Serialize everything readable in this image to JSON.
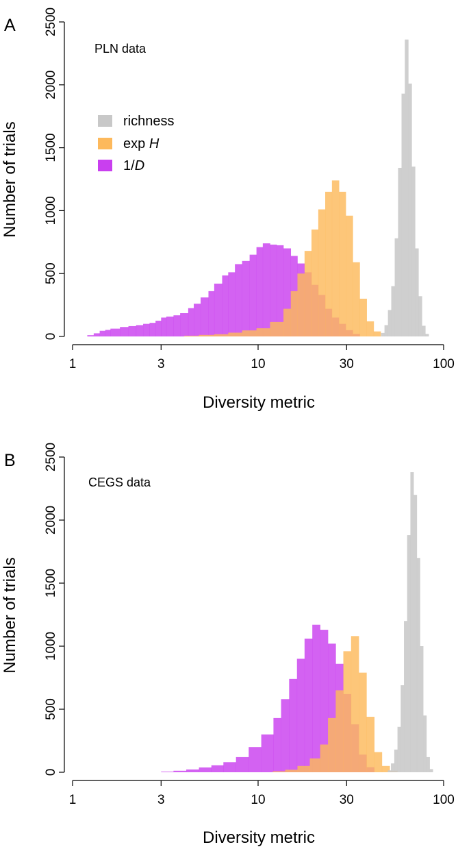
{
  "chart_data": [
    {
      "type": "histogram",
      "panel": "A",
      "dataset_label": "PLN data",
      "xlabel": "Diversity metric",
      "ylabel": "Number of trials",
      "xscale": "log",
      "xlim": [
        1,
        100
      ],
      "ylim": [
        0,
        2500
      ],
      "xticks": [
        1,
        3,
        10,
        30,
        100
      ],
      "xtick_labels": [
        "1",
        "3",
        "10",
        "30",
        "100"
      ],
      "yticks": [
        0,
        500,
        1000,
        1500,
        2000,
        2500
      ],
      "ytick_labels": [
        "0",
        "500",
        "1000",
        "1500",
        "2000",
        "2500"
      ],
      "legend": {
        "placement": "upper-left",
        "entries": [
          {
            "label": "richness",
            "series": "richness"
          },
          {
            "label": "exp ",
            "italic": "H",
            "series": "expH"
          },
          {
            "label": "1/",
            "italic": "D",
            "series": "invD"
          }
        ]
      },
      "series": [
        {
          "name": "1/D",
          "key": "invD",
          "color": "#c93fef",
          "opacity": 0.82,
          "bins": [
            [
              1.2,
              1.3,
              10
            ],
            [
              1.3,
              1.4,
              25
            ],
            [
              1.4,
              1.5,
              45
            ],
            [
              1.5,
              1.6,
              52
            ],
            [
              1.6,
              1.8,
              62
            ],
            [
              1.8,
              2.0,
              75
            ],
            [
              2.0,
              2.2,
              82
            ],
            [
              2.2,
              2.4,
              90
            ],
            [
              2.4,
              2.6,
              100
            ],
            [
              2.6,
              2.8,
              108
            ],
            [
              2.8,
              3.0,
              125
            ],
            [
              3.0,
              3.2,
              150
            ],
            [
              3.2,
              3.5,
              158
            ],
            [
              3.5,
              3.8,
              168
            ],
            [
              3.8,
              4.2,
              185
            ],
            [
              4.2,
              4.5,
              225
            ],
            [
              4.5,
              4.9,
              260
            ],
            [
              4.9,
              5.4,
              310
            ],
            [
              5.4,
              5.8,
              360
            ],
            [
              5.8,
              6.4,
              420
            ],
            [
              6.4,
              6.9,
              485
            ],
            [
              6.9,
              7.5,
              510
            ],
            [
              7.5,
              8.2,
              575
            ],
            [
              8.2,
              9.0,
              600
            ],
            [
              9.0,
              9.8,
              650
            ],
            [
              9.8,
              10.6,
              710
            ],
            [
              10.6,
              11.6,
              740
            ],
            [
              11.6,
              12.6,
              730
            ],
            [
              12.6,
              13.7,
              725
            ],
            [
              13.7,
              15.0,
              700
            ],
            [
              15.0,
              16.3,
              640
            ],
            [
              16.3,
              17.8,
              580
            ],
            [
              17.8,
              19.4,
              510
            ],
            [
              19.4,
              21.1,
              410
            ],
            [
              21.1,
              23.0,
              330
            ],
            [
              23.0,
              25.0,
              220
            ],
            [
              25.0,
              27.3,
              150
            ],
            [
              27.3,
              29.7,
              100
            ],
            [
              29.7,
              32.4,
              50
            ],
            [
              32.4,
              35.3,
              20
            ]
          ]
        },
        {
          "name": "exp H",
          "key": "expH",
          "color": "#fdb95c",
          "opacity": 0.82,
          "bins": [
            [
              4.0,
              4.8,
              6
            ],
            [
              4.8,
              5.8,
              12
            ],
            [
              5.8,
              6.9,
              18
            ],
            [
              6.9,
              8.2,
              30
            ],
            [
              8.2,
              9.8,
              48
            ],
            [
              9.8,
              11.6,
              65
            ],
            [
              11.6,
              13.7,
              115
            ],
            [
              13.7,
              15.0,
              220
            ],
            [
              15.0,
              16.3,
              360
            ],
            [
              16.3,
              17.8,
              500
            ],
            [
              17.8,
              19.4,
              680
            ],
            [
              19.4,
              21.1,
              850
            ],
            [
              21.1,
              23.0,
              1010
            ],
            [
              23.0,
              25.0,
              1150
            ],
            [
              25.0,
              27.3,
              1240
            ],
            [
              27.3,
              29.7,
              1150
            ],
            [
              29.7,
              32.4,
              960
            ],
            [
              32.4,
              35.3,
              590
            ],
            [
              35.3,
              38.5,
              300
            ],
            [
              38.5,
              42.0,
              120
            ],
            [
              42.0,
              45.8,
              40
            ]
          ]
        },
        {
          "name": "richness",
          "key": "richness",
          "color": "#c8c8c8",
          "opacity": 0.88,
          "bins": [
            [
              46.0,
              48.0,
              28
            ],
            [
              48.0,
              50.1,
              90
            ],
            [
              50.1,
              52.2,
              210
            ],
            [
              52.2,
              54.5,
              400
            ],
            [
              54.5,
              56.8,
              780
            ],
            [
              56.8,
              59.3,
              1340
            ],
            [
              59.3,
              61.8,
              1930
            ],
            [
              61.8,
              64.5,
              2360
            ],
            [
              64.5,
              67.3,
              2010
            ],
            [
              67.3,
              70.2,
              1350
            ],
            [
              70.2,
              73.2,
              700
            ],
            [
              73.2,
              76.4,
              320
            ],
            [
              76.4,
              79.7,
              85
            ],
            [
              79.7,
              83.1,
              20
            ]
          ]
        }
      ]
    },
    {
      "type": "histogram",
      "panel": "B",
      "dataset_label": "CEGS data",
      "xlabel": "Diversity metric",
      "ylabel": "Number of trials",
      "xscale": "log",
      "xlim": [
        1,
        100
      ],
      "ylim": [
        0,
        2500
      ],
      "xticks": [
        1,
        3,
        10,
        30,
        100
      ],
      "xtick_labels": [
        "1",
        "3",
        "10",
        "30",
        "100"
      ],
      "yticks": [
        0,
        500,
        1000,
        1500,
        2000,
        2500
      ],
      "ytick_labels": [
        "0",
        "500",
        "1000",
        "1500",
        "2000",
        "2500"
      ],
      "series": [
        {
          "name": "1/D",
          "key": "invD",
          "color": "#c93fef",
          "opacity": 0.82,
          "bins": [
            [
              3.0,
              3.5,
              5
            ],
            [
              3.5,
              4.1,
              12
            ],
            [
              4.1,
              4.8,
              22
            ],
            [
              4.8,
              5.6,
              38
            ],
            [
              5.6,
              6.5,
              55
            ],
            [
              6.5,
              7.6,
              80
            ],
            [
              7.6,
              8.9,
              120
            ],
            [
              8.9,
              10.4,
              200
            ],
            [
              10.4,
              12.1,
              300
            ],
            [
              12.1,
              13.3,
              430
            ],
            [
              13.3,
              14.7,
              580
            ],
            [
              14.7,
              16.2,
              740
            ],
            [
              16.2,
              17.8,
              900
            ],
            [
              17.8,
              19.6,
              1060
            ],
            [
              19.6,
              21.6,
              1170
            ],
            [
              21.6,
              23.8,
              1130
            ],
            [
              23.8,
              26.2,
              1020
            ],
            [
              26.2,
              28.8,
              860
            ],
            [
              28.8,
              31.7,
              620
            ],
            [
              31.7,
              34.9,
              380
            ],
            [
              34.9,
              38.4,
              140
            ],
            [
              38.4,
              42.3,
              40
            ]
          ]
        },
        {
          "name": "exp H",
          "key": "expH",
          "color": "#fdb95c",
          "opacity": 0.82,
          "bins": [
            [
              12.0,
              14.0,
              8
            ],
            [
              14.0,
              16.3,
              20
            ],
            [
              16.3,
              19.0,
              50
            ],
            [
              19.0,
              21.6,
              110
            ],
            [
              21.6,
              23.8,
              220
            ],
            [
              23.8,
              26.2,
              430
            ],
            [
              26.2,
              28.8,
              650
            ],
            [
              28.8,
              31.7,
              960
            ],
            [
              31.7,
              34.9,
              1080
            ],
            [
              34.9,
              38.4,
              790
            ],
            [
              38.4,
              42.3,
              440
            ],
            [
              42.3,
              46.5,
              160
            ],
            [
              46.5,
              51.2,
              50
            ],
            [
              51.2,
              56.3,
              12
            ]
          ]
        },
        {
          "name": "richness",
          "key": "richness",
          "color": "#c8c8c8",
          "opacity": 0.88,
          "bins": [
            [
              50.0,
              52.0,
              15
            ],
            [
              52.0,
              54.2,
              70
            ],
            [
              54.2,
              56.4,
              180
            ],
            [
              56.4,
              58.7,
              360
            ],
            [
              58.7,
              61.1,
              690
            ],
            [
              61.1,
              63.6,
              1200
            ],
            [
              63.6,
              66.2,
              1880
            ],
            [
              66.2,
              68.9,
              2380
            ],
            [
              68.9,
              71.7,
              2200
            ],
            [
              71.7,
              74.6,
              1700
            ],
            [
              74.6,
              77.6,
              1000
            ],
            [
              77.6,
              80.8,
              450
            ],
            [
              80.8,
              84.1,
              120
            ],
            [
              84.1,
              87.5,
              25
            ]
          ]
        }
      ]
    }
  ]
}
